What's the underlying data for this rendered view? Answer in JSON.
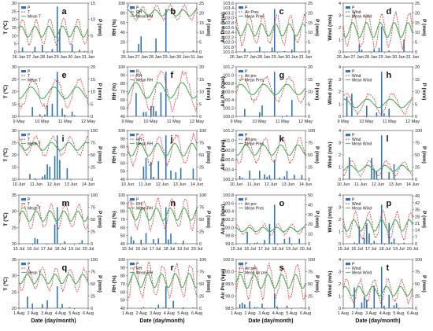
{
  "figure": {
    "row_date_labels": [
      [
        "26 Jan",
        "27 Jan",
        "28 Jan",
        "29 Jan",
        "30 Jan",
        "31 Jan"
      ],
      [
        "9 May",
        "10 May",
        "11 May",
        "12 May"
      ],
      [
        "10 Jun",
        "11 Jun",
        "12 Jun",
        "13 Jun",
        "14 Jun"
      ],
      [
        "15 Jul",
        "16 Jul",
        "17 Jul",
        "18 Jul",
        "19 Jul",
        "20 Jul"
      ],
      [
        "1 Aug",
        "2 Aug",
        "3 Aug",
        "4 Aug",
        "5 Aug",
        "6 Aug"
      ]
    ],
    "xlabel": "Date (day/month)",
    "colors": {
      "precip": "#2e75b6",
      "dashed": "#e32d2d",
      "mean": "#2bb24c"
    }
  },
  "chart_data": [
    {
      "panel": "a",
      "type": "line",
      "ylabel": "T (℃)",
      "y2label": "P (mm)",
      "ylim": [
        0,
        30
      ],
      "yticks": [
        0,
        5,
        10,
        15,
        20,
        25,
        30
      ],
      "y2lim": [
        0,
        15
      ],
      "y2ticks": [
        0,
        5,
        10,
        15
      ],
      "legend": [
        "P",
        "T",
        "Mean T"
      ],
      "series": [
        {
          "name": "T",
          "min": 3,
          "max": 22
        },
        {
          "name": "Mean T",
          "values": "approx 10-15"
        },
        {
          "name": "P",
          "max": 14
        }
      ]
    },
    {
      "panel": "b",
      "type": "line",
      "ylabel": "RH (%)",
      "y2label": "P (mm)",
      "ylim": [
        0,
        100
      ],
      "yticks": [
        0,
        20,
        40,
        60,
        80,
        100
      ],
      "y2lim": [
        0,
        25
      ],
      "y2ticks": [
        0,
        5,
        10,
        15,
        20,
        25
      ],
      "legend": [
        "P",
        "RH",
        "Mean RH"
      ],
      "series": [
        {
          "name": "RH",
          "min": 62,
          "max": 98
        },
        {
          "name": "Mean RH",
          "values": "approx 70-85"
        },
        {
          "name": "P",
          "max": 22
        }
      ]
    },
    {
      "panel": "c",
      "type": "line",
      "ylabel": "Air Pre (kpa)",
      "y2label": "P (mm)",
      "ylim": [
        101.6,
        103.6
      ],
      "yticks": [
        101.6,
        101.8,
        102.0,
        102.2,
        102.4,
        102.6,
        102.8,
        103.0,
        103.2,
        103.4,
        103.6
      ],
      "y2lim": [
        0,
        25
      ],
      "y2ticks": [
        0,
        5,
        10,
        15,
        20,
        25
      ],
      "legend": [
        "P",
        "Air Pres",
        "Mean Pres"
      ],
      "series": [
        {
          "name": "Air Pres",
          "min": 101.8,
          "max": 103.2
        },
        {
          "name": "Mean Pres",
          "values": "approx 102.2-102.8"
        },
        {
          "name": "P",
          "max": 22
        }
      ]
    },
    {
      "panel": "d",
      "type": "line",
      "ylabel": "Wind (m/s)",
      "y2label": "P (mm)",
      "ylim": [
        0,
        4
      ],
      "yticks": [
        0,
        1,
        2,
        3,
        4
      ],
      "y2lim": [
        0,
        25
      ],
      "y2ticks": [
        0,
        5,
        10,
        15,
        20,
        25
      ],
      "legend": [
        "P",
        "Wind",
        "Mean Wind"
      ],
      "series": [
        {
          "name": "Wind",
          "min": 0.1,
          "max": 3.5
        },
        {
          "name": "Mean Wind",
          "values": "approx 0.4-1.2"
        },
        {
          "name": "P",
          "max": 13
        }
      ]
    },
    {
      "panel": "e",
      "type": "line",
      "ylabel": "T (℃)",
      "y2label": "P (mm)",
      "ylim": [
        10,
        30
      ],
      "yticks": [
        10,
        15,
        20,
        25,
        30
      ],
      "y2lim": [
        0,
        20
      ],
      "y2ticks": [
        0,
        5,
        10,
        15,
        20
      ],
      "legend": [
        "P",
        "T",
        "Mean T"
      ],
      "series": [
        {
          "name": "T",
          "min": 13,
          "max": 26
        },
        {
          "name": "Mean T",
          "values": "approx 15-23"
        },
        {
          "name": "P",
          "max": 18
        }
      ]
    },
    {
      "panel": "f",
      "type": "line",
      "ylabel": "RH (%)",
      "y2label": "P (mm)",
      "ylim": [
        40,
        100
      ],
      "yticks": [
        40,
        50,
        60,
        70,
        80,
        90,
        100
      ],
      "y2lim": [
        0,
        20
      ],
      "y2ticks": [
        0,
        5,
        10,
        15,
        20
      ],
      "legend": [
        "P",
        "RH",
        "Mean RH"
      ],
      "series": [
        {
          "name": "RH",
          "min": 45,
          "max": 98
        },
        {
          "name": "Mean RH",
          "values": "approx 58-82"
        },
        {
          "name": "P",
          "max": 18
        }
      ]
    },
    {
      "panel": "g",
      "type": "line",
      "ylabel": "Air Pre (kpa)",
      "y2label": "P (mm)",
      "ylim": [
        100.0,
        101.2
      ],
      "yticks": [
        100.0,
        100.2,
        100.4,
        100.6,
        100.8,
        101.0,
        101.2
      ],
      "y2lim": [
        0,
        20
      ],
      "y2ticks": [
        0,
        5,
        10,
        15,
        20
      ],
      "legend": [
        "P",
        "Air pre",
        "Mean Pres"
      ],
      "series": [
        {
          "name": "Air pre",
          "min": 100.3,
          "max": 101.0
        },
        {
          "name": "Mean Pres",
          "values": "approx 100.5-100.9"
        },
        {
          "name": "P",
          "max": 18
        }
      ]
    },
    {
      "panel": "h",
      "type": "line",
      "ylabel": "Wind (m/s)",
      "y2label": "P (mm)",
      "ylim": [
        0,
        4
      ],
      "yticks": [
        0,
        1,
        2,
        3,
        4
      ],
      "y2lim": [
        0,
        20
      ],
      "y2ticks": [
        0,
        5,
        10,
        15,
        20
      ],
      "legend": [
        "P",
        "Wind",
        "Mean Wind"
      ],
      "series": [
        {
          "name": "Wind",
          "min": 0.1,
          "max": 2.0
        },
        {
          "name": "Mean Wind",
          "values": "approx 0.4-1.0"
        },
        {
          "name": "P",
          "max": 18
        }
      ]
    },
    {
      "panel": "i",
      "type": "line",
      "ylabel": "T (℃)",
      "y2label": "P (mm)",
      "ylim": [
        10,
        30
      ],
      "yticks": [
        10,
        15,
        20,
        25,
        30
      ],
      "y2lim": [
        0,
        100
      ],
      "y2ticks": [
        0,
        25,
        50,
        75,
        100
      ],
      "legend": [
        "P",
        "T",
        "Mean T"
      ],
      "series": [
        {
          "name": "T",
          "min": 19,
          "max": 28
        },
        {
          "name": "Mean T",
          "values": "approx 21-25"
        },
        {
          "name": "P",
          "max": 90
        }
      ]
    },
    {
      "panel": "j",
      "type": "line",
      "ylabel": "RH (%)",
      "y2label": "P (mm)",
      "ylim": [
        40,
        100
      ],
      "yticks": [
        40,
        50,
        60,
        70,
        80,
        90,
        100
      ],
      "y2lim": [
        0,
        100
      ],
      "y2ticks": [
        0,
        25,
        50,
        75,
        100
      ],
      "legend": [
        "P",
        "RH",
        "Mean RH"
      ],
      "series": [
        {
          "name": "RH",
          "min": 55,
          "max": 98
        },
        {
          "name": "Mean RH",
          "values": "approx 70-88"
        },
        {
          "name": "P",
          "max": 90
        }
      ]
    },
    {
      "panel": "k",
      "type": "line",
      "ylabel": "Air Pre (kpa)",
      "y2label": "P (mm)",
      "ylim": [
        100.2,
        101.2
      ],
      "yticks": [
        100.2,
        100.4,
        100.6,
        100.8,
        101.0,
        101.2
      ],
      "y2lim": [
        0,
        100
      ],
      "y2ticks": [
        0,
        25,
        50,
        75,
        100
      ],
      "legend": [
        "P",
        "Air pre",
        "Mean Pres"
      ],
      "series": [
        {
          "name": "Air pre",
          "min": 100.5,
          "max": 101.1
        },
        {
          "name": "Mean Pres",
          "values": "approx 100.6-100.8"
        },
        {
          "name": "P",
          "max": 40
        }
      ]
    },
    {
      "panel": "l",
      "type": "line",
      "ylabel": "Wind (m/s)",
      "y2label": "P (mm)",
      "ylim": [
        0,
        4
      ],
      "yticks": [
        0,
        1,
        2,
        3,
        4
      ],
      "y2lim": [
        0,
        100
      ],
      "y2ticks": [
        0,
        25,
        50,
        75,
        100
      ],
      "legend": [
        "P",
        "Wind",
        "Mean Wind"
      ],
      "series": [
        {
          "name": "Wind",
          "min": 0.2,
          "max": 1.6
        },
        {
          "name": "Mean Wind",
          "values": "approx 0.5-1.0"
        },
        {
          "name": "P",
          "max": 90
        }
      ]
    },
    {
      "panel": "m",
      "type": "line",
      "ylabel": "T (℃)",
      "y2label": "P (mm)",
      "ylim": [
        20,
        35
      ],
      "yticks": [
        20,
        25,
        30,
        35
      ],
      "y2lim": [
        0,
        100
      ],
      "y2ticks": [
        0,
        25,
        50,
        75,
        100
      ],
      "legend": [
        "P",
        "T",
        "Mean T"
      ],
      "series": [
        {
          "name": "T",
          "min": 24,
          "max": 33
        },
        {
          "name": "Mean T",
          "values": "approx 26-29"
        },
        {
          "name": "P",
          "max": 75
        }
      ]
    },
    {
      "panel": "n",
      "type": "line",
      "ylabel": "RH (%)",
      "y2label": "P (mm)",
      "ylim": [
        40,
        100
      ],
      "yticks": [
        40,
        50,
        60,
        70,
        80,
        90,
        100
      ],
      "y2lim": [
        0,
        100
      ],
      "y2ticks": [
        0,
        25,
        50,
        75,
        100
      ],
      "legend": [
        "P",
        "RH",
        "Mean RH"
      ],
      "series": [
        {
          "name": "RH",
          "min": 55,
          "max": 98
        },
        {
          "name": "Mean RH",
          "values": "approx 70-85"
        },
        {
          "name": "P",
          "max": 75
        }
      ]
    },
    {
      "panel": "o",
      "type": "line",
      "ylabel": "Air Pre (kpa)",
      "y2label": "P (mm)",
      "ylim": [
        99.6,
        100.8
      ],
      "yticks": [
        99.6,
        99.8,
        100.0,
        100.2,
        100.4,
        100.6,
        100.8
      ],
      "y2lim": [
        0,
        50
      ],
      "y2ticks": [
        0,
        10,
        20,
        30,
        40,
        50
      ],
      "legend": [
        "P",
        "Air pre",
        "Mean Pres"
      ],
      "series": [
        {
          "name": "Air pre",
          "min": 99.8,
          "max": 100.1
        },
        {
          "name": "Mean Pres",
          "values": "approx 99.9-100.0"
        },
        {
          "name": "P",
          "max": 40
        }
      ]
    },
    {
      "panel": "p",
      "type": "line",
      "ylabel": "Wind (m/s)",
      "y2label": "P (mm)",
      "ylim": [
        0,
        4
      ],
      "yticks": [
        0,
        1,
        2,
        3,
        4
      ],
      "y2lim": [
        0,
        50
      ],
      "y2ticks": [
        0,
        7,
        14,
        21,
        28,
        35,
        42,
        49
      ],
      "legend": [
        "P",
        "Wind",
        "Mean Wind"
      ],
      "series": [
        {
          "name": "Wind",
          "min": 0.2,
          "max": 2.8
        },
        {
          "name": "Mean Wind",
          "values": "approx 0.6-1.2"
        },
        {
          "name": "P",
          "max": 40
        }
      ]
    },
    {
      "panel": "q",
      "type": "line",
      "ylabel": "T (℃)",
      "y2label": "P (mm)",
      "ylim": [
        20,
        35
      ],
      "yticks": [
        20,
        25,
        30,
        35
      ],
      "y2lim": [
        0,
        100
      ],
      "y2ticks": [
        0,
        25,
        50,
        75,
        100
      ],
      "legend": [
        "P",
        "T",
        "Mean T"
      ],
      "series": [
        {
          "name": "T",
          "min": 25,
          "max": 33
        },
        {
          "name": "Mean T",
          "values": "approx 27-30"
        },
        {
          "name": "P",
          "max": 45
        }
      ]
    },
    {
      "panel": "r",
      "type": "line",
      "ylabel": "RH (%)",
      "y2label": "P (mm)",
      "ylim": [
        40,
        100
      ],
      "yticks": [
        40,
        50,
        60,
        70,
        80,
        90,
        100
      ],
      "y2lim": [
        0,
        100
      ],
      "y2ticks": [
        0,
        25,
        50,
        75,
        100
      ],
      "legend": [
        "P",
        "RH",
        "Mean RH"
      ],
      "series": [
        {
          "name": "RH",
          "min": 50,
          "max": 98
        },
        {
          "name": "Mean RH",
          "values": "approx 68-85"
        },
        {
          "name": "P",
          "max": 45
        }
      ]
    },
    {
      "panel": "s",
      "type": "line",
      "ylabel": "Air Pre (kpa)",
      "y2label": "P (mm)",
      "ylim": [
        98.5,
        100.5
      ],
      "yticks": [
        98.5,
        99.0,
        99.5,
        100.0,
        100.5
      ],
      "y2lim": [
        0,
        100
      ],
      "y2ticks": [
        0,
        25,
        50,
        75,
        100
      ],
      "legend": [
        "P",
        "Air pre",
        "Mean Air pre"
      ],
      "series": [
        {
          "name": "Air pre",
          "min": 98.8,
          "max": 100.4
        },
        {
          "name": "Mean Air pre",
          "values": "approx 99.8-100.0"
        },
        {
          "name": "P",
          "max": 30
        }
      ]
    },
    {
      "panel": "t",
      "type": "line",
      "ylabel": "Wind (m/s)",
      "y2label": "P (mm)",
      "ylim": [
        0,
        4
      ],
      "yticks": [
        0,
        1,
        2,
        3,
        4
      ],
      "y2lim": [
        0,
        100
      ],
      "y2ticks": [
        0,
        25,
        50,
        75,
        100
      ],
      "legend": [
        "P",
        "Wind",
        "Mean Wind"
      ],
      "series": [
        {
          "name": "Wind",
          "min": 0.3,
          "max": 2.5
        },
        {
          "name": "Mean Wind",
          "values": "approx 0.6-1.2"
        },
        {
          "name": "P",
          "max": 85
        }
      ]
    }
  ]
}
